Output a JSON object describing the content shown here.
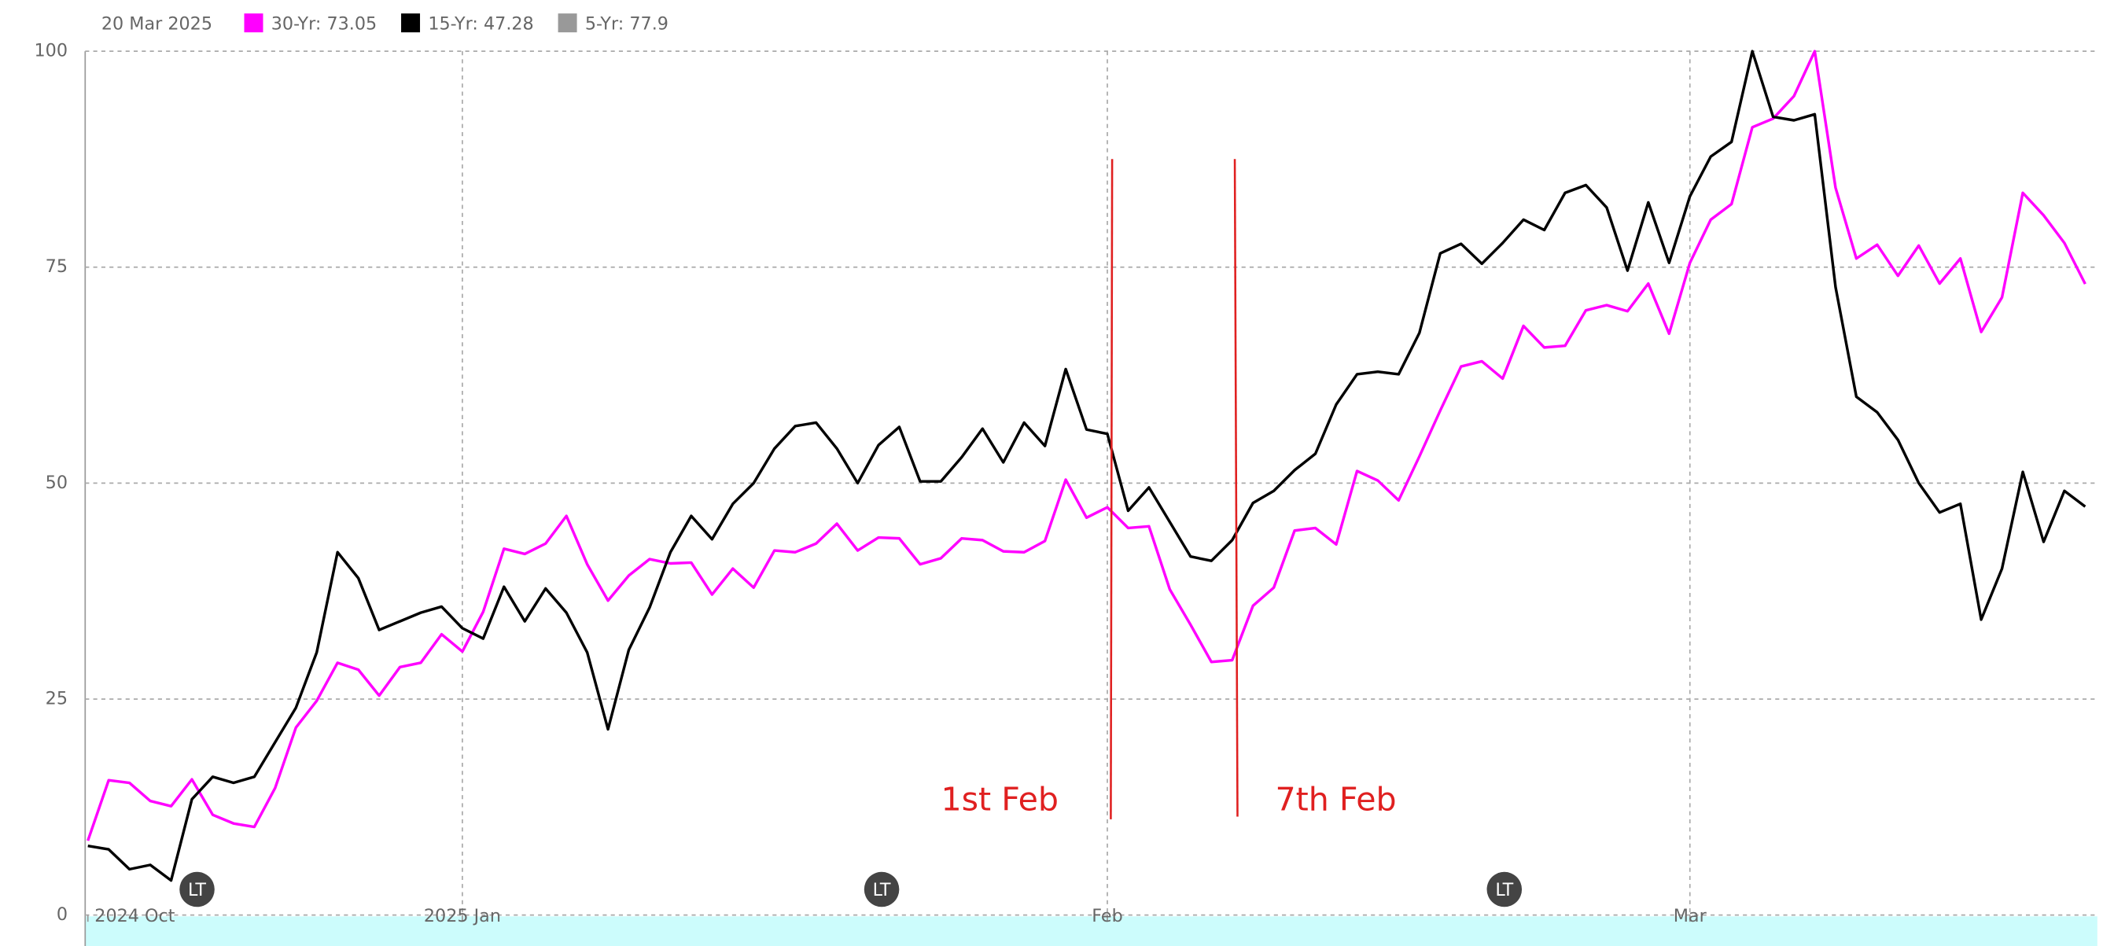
{
  "chart_data": {
    "type": "line",
    "legend_date": "20 Mar 2025",
    "categories": [
      "2024 Oct",
      null,
      null,
      null,
      null,
      null,
      null,
      null,
      null,
      null,
      null,
      null,
      null,
      null,
      null,
      null,
      null,
      null,
      "2025 Jan",
      null,
      null,
      null,
      null,
      null,
      null,
      null,
      null,
      null,
      null,
      null,
      null,
      null,
      null,
      null,
      null,
      null,
      null,
      null,
      null,
      null,
      null,
      null,
      null,
      null,
      null,
      null,
      null,
      null,
      null,
      "Feb",
      null,
      null,
      null,
      null,
      null,
      null,
      null,
      null,
      null,
      null,
      null,
      null,
      null,
      null,
      null,
      null,
      null,
      null,
      null,
      null,
      null,
      null,
      null,
      null,
      null,
      null,
      null,
      "Mar",
      null,
      null,
      null,
      null,
      null,
      null,
      null,
      null,
      null,
      null,
      null,
      null,
      null,
      null,
      null,
      null,
      null,
      null,
      null
    ],
    "series": [
      {
        "name": "30-Yr: 73.05",
        "color": "#ff00ff",
        "values": [
          8.6,
          15.6,
          15.3,
          13.2,
          12.6,
          15.7,
          11.6,
          10.6,
          10.2,
          14.7,
          21.7,
          24.8,
          29.2,
          28.4,
          25.4,
          28.7,
          29.2,
          32.5,
          30.5,
          35.1,
          42.4,
          41.8,
          43,
          46.2,
          40.6,
          36.4,
          39.3,
          41.2,
          40.7,
          40.8,
          37.1,
          40.1,
          37.9,
          42.2,
          42,
          43,
          45.3,
          42.2,
          43.7,
          43.6,
          40.6,
          41.3,
          43.6,
          43.4,
          42.1,
          42,
          43.3,
          50.4,
          46,
          47.2,
          44.8,
          45,
          37.7,
          33.6,
          29.3,
          29.5,
          35.8,
          37.9,
          44.5,
          44.8,
          42.9,
          51.4,
          50.3,
          48,
          53.1,
          58.4,
          63.5,
          64.1,
          62.1,
          68.2,
          65.7,
          65.9,
          70,
          70.6,
          69.9,
          73.1,
          67.3,
          75.5,
          80.5,
          82.3,
          91.2,
          92.2,
          94.8,
          100,
          84.2,
          76,
          77.6,
          74,
          77.5,
          73.1,
          76,
          67.5,
          71.5,
          83.6,
          81,
          77.8,
          73.05
        ]
      },
      {
        "name": "15-Yr: 47.28",
        "color": "#000000",
        "values": [
          8,
          7.6,
          5.3,
          5.8,
          4,
          13.4,
          16,
          15.3,
          16,
          20,
          24,
          30.4,
          42,
          39,
          33,
          34,
          35,
          35.7,
          33.2,
          32,
          38,
          34,
          37.8,
          35,
          30.4,
          21.5,
          30.7,
          35.6,
          42,
          46.2,
          43.5,
          47.6,
          50,
          54,
          56.6,
          57,
          54,
          50,
          54.4,
          56.5,
          50.2,
          50.2,
          53,
          56.3,
          52.4,
          57,
          54.3,
          63.2,
          56.2,
          55.7,
          46.8,
          49.5,
          45.5,
          41.5,
          41,
          43.4,
          47.7,
          49.1,
          51.5,
          53.4,
          59.1,
          62.6,
          62.9,
          62.6,
          67.4,
          76.6,
          77.7,
          75.4,
          77.8,
          80.5,
          79.3,
          83.6,
          84.5,
          81.9,
          74.6,
          82.5,
          75.5,
          83.2,
          87.8,
          89.5,
          100,
          92.4,
          92,
          92.7,
          72.7,
          60,
          58.2,
          55,
          50,
          46.6,
          47.6,
          34.2,
          40.1,
          51.3,
          43.2,
          49.1,
          47.28
        ]
      }
    ],
    "legend_extra": [
      {
        "name": "5-Yr: 77.9",
        "color": "#999999"
      }
    ],
    "ylim": [
      0,
      100
    ],
    "yticks": [
      0,
      25,
      50,
      75,
      100
    ],
    "grid": true,
    "annotations": [
      "1st Feb",
      "7th Feb"
    ],
    "markers": [
      "LT",
      "LT",
      "LT"
    ]
  }
}
